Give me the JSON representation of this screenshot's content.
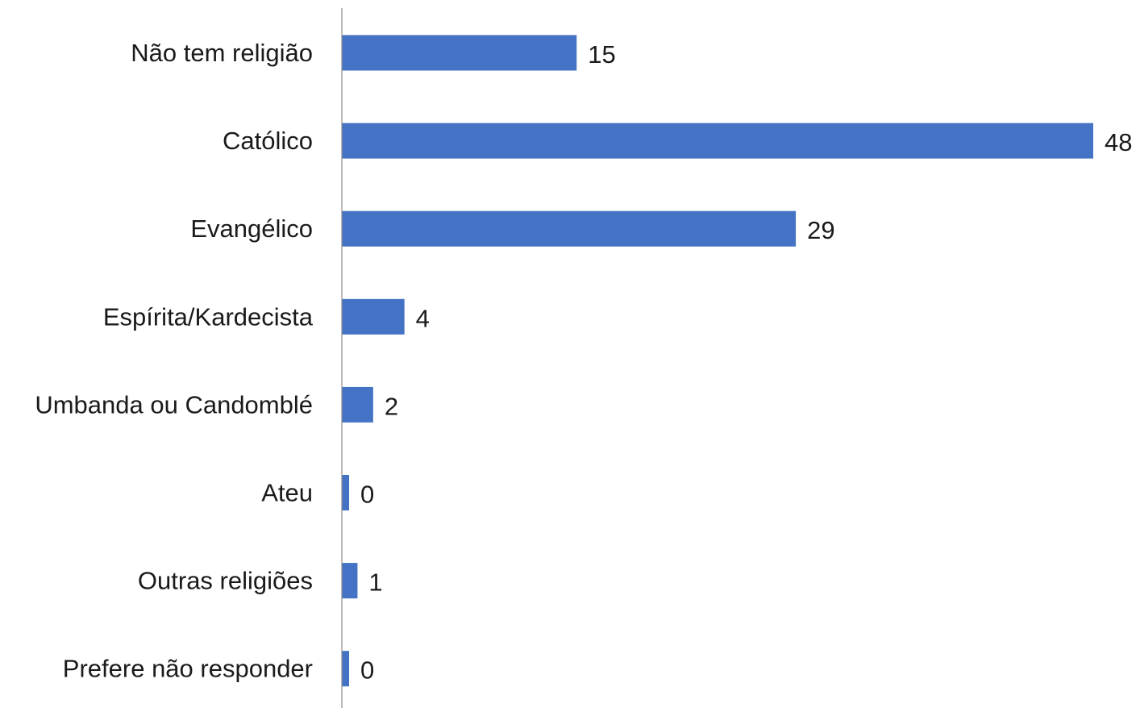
{
  "chart_data": {
    "type": "bar",
    "orientation": "horizontal",
    "categories": [
      "Não tem religião",
      "Católico",
      "Evangélico",
      "Espírita/Kardecista",
      "Umbanda ou Candomblé",
      "Ateu",
      "Outras religiões",
      "Prefere não responder"
    ],
    "values": [
      15,
      48,
      29,
      4,
      2,
      0,
      1,
      0
    ],
    "data_labels": [
      "15",
      "48",
      "29",
      "4",
      "2",
      "0",
      "1",
      "0"
    ],
    "title": "",
    "xlabel": "",
    "ylabel": "",
    "xlim": [
      0,
      48
    ],
    "grid": false,
    "legend": "none",
    "bar_color": "#4472c4"
  }
}
